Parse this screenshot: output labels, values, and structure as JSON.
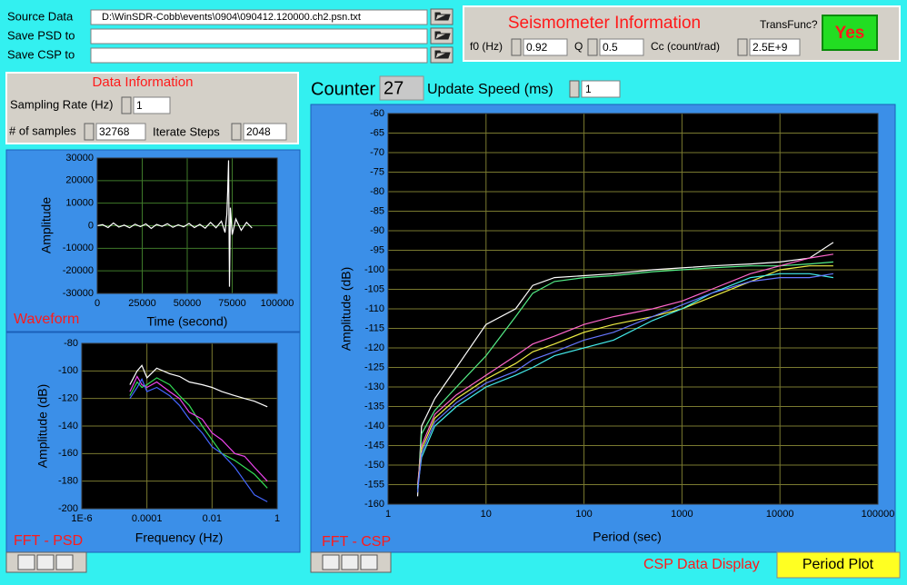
{
  "controls": {
    "source_data": {
      "label": "Source Data",
      "value": "D:\\WinSDR-Cobb\\events\\0904\\090412.120000.ch2.psn.txt"
    },
    "save_psd": {
      "label": "Save PSD to"
    },
    "save_csp": {
      "label": "Save CSP to"
    }
  },
  "seismometer": {
    "title": "Seismometer Information",
    "f0": {
      "label": "f0 (Hz)",
      "value": 0.92
    },
    "q": {
      "label": "Q",
      "value": 0.5
    },
    "cc": {
      "label": "Cc (count/rad)",
      "value": "2.5E+9"
    },
    "transfunc": {
      "label": "TransFunc?",
      "button": "Yes"
    }
  },
  "data_info": {
    "title": "Data Information",
    "sampling_rate": {
      "label": "Sampling Rate (Hz)",
      "value": 1
    },
    "samples": {
      "label": "# of samples",
      "value": 32768
    },
    "iterate_steps": {
      "label": "Iterate Steps",
      "value": 2048
    }
  },
  "counter": {
    "label": "Counter",
    "value": 27
  },
  "update_speed": {
    "label": "Update Speed (ms)",
    "value": 1
  },
  "csp_display": {
    "label": "CSP Data Display",
    "button": "Period Plot"
  },
  "chart_data": [
    {
      "type": "line",
      "title": "Waveform",
      "xlabel": "Time (second)",
      "ylabel": "Amplitude",
      "x": [
        0,
        3000,
        6000,
        9000,
        12000,
        15000,
        18000,
        21000,
        24000,
        27000,
        30000,
        33000,
        36000,
        39000,
        42000,
        45000,
        48000,
        51000,
        54000,
        57000,
        60000,
        63000,
        66000,
        69000,
        71000,
        72000,
        72500,
        73000,
        73500,
        74000,
        75000,
        77000,
        80000,
        83000,
        86000
      ],
      "series": [
        {
          "color": "#ffffff",
          "values": [
            0,
            500,
            -800,
            1200,
            -600,
            300,
            -900,
            700,
            -400,
            800,
            -1200,
            600,
            -300,
            900,
            -700,
            400,
            -500,
            1000,
            -800,
            600,
            -1100,
            1500,
            -900,
            2000,
            -3000,
            5000,
            15000,
            29000,
            -27000,
            8000,
            -4000,
            3000,
            -2000,
            1500,
            -1000
          ]
        }
      ],
      "xlim": [
        0,
        100000
      ],
      "xticks": [
        0,
        25000,
        50000,
        75000,
        100000
      ],
      "ylim": [
        -30000,
        30000
      ],
      "yticks": [
        -30000,
        -20000,
        -10000,
        0,
        10000,
        20000,
        30000
      ],
      "grid": true,
      "grid_color": "#3f7a2a",
      "background": "#000000"
    },
    {
      "type": "line",
      "title": "FFT - PSD",
      "xlabel": "Frequency (Hz)",
      "ylabel": "Amplitude (dB)",
      "xscale": "log",
      "x": [
        3e-05,
        5e-05,
        7e-05,
        0.0001,
        0.0002,
        0.0005,
        0.001,
        0.002,
        0.005,
        0.01,
        0.02,
        0.05,
        0.1,
        0.2,
        0.5
      ],
      "series": [
        {
          "color": "#ffffff",
          "values": [
            -110,
            -100,
            -96,
            -105,
            -98,
            -102,
            -104,
            -108,
            -110,
            -112,
            -115,
            -118,
            -120,
            -122,
            -126
          ]
        },
        {
          "color": "#33dd55",
          "values": [
            -118,
            -108,
            -112,
            -110,
            -105,
            -110,
            -118,
            -125,
            -140,
            -150,
            -160,
            -165,
            -170,
            -175,
            -185
          ]
        },
        {
          "color": "#ee44ee",
          "values": [
            -115,
            -104,
            -110,
            -112,
            -108,
            -115,
            -120,
            -130,
            -135,
            -145,
            -150,
            -160,
            -162,
            -170,
            -180
          ]
        },
        {
          "color": "#4466ff",
          "values": [
            -120,
            -112,
            -106,
            -115,
            -112,
            -118,
            -125,
            -135,
            -145,
            -155,
            -160,
            -170,
            -180,
            -190,
            -195
          ]
        }
      ],
      "xlim": [
        1e-06,
        1
      ],
      "xticks": [
        {
          "value": 1e-06,
          "label": "1E-6"
        },
        0.0001,
        0.01,
        1
      ],
      "ylim": [
        -200,
        -80
      ],
      "yticks": [
        -200,
        -180,
        -160,
        -140,
        -120,
        -100,
        -80
      ],
      "grid": true,
      "grid_color": "#7a7a30",
      "background": "#000000"
    },
    {
      "type": "line",
      "title": "FFT - CSP",
      "xlabel": "Period (sec)",
      "ylabel": "Amplitude (dB)",
      "xscale": "log",
      "x": [
        2,
        2.2,
        3,
        5,
        10,
        20,
        30,
        50,
        100,
        200,
        500,
        1000,
        2000,
        5000,
        10000,
        20000,
        35000
      ],
      "series": [
        {
          "color": "#ffffff",
          "values": [
            -158,
            -140,
            -133,
            -125,
            -114,
            -110,
            -104,
            -102,
            -101.5,
            -101,
            -100,
            -99.5,
            -99,
            -98.5,
            -98,
            -97,
            -93
          ]
        },
        {
          "color": "#55ee88",
          "values": [
            -157,
            -142,
            -136,
            -130,
            -122,
            -112,
            -106,
            -103,
            -102,
            -101.5,
            -100.5,
            -100,
            -99.5,
            -99,
            -99,
            -98.5,
            -98
          ]
        },
        {
          "color": "#ff66cc",
          "values": [
            -155,
            -145,
            -137,
            -132,
            -127,
            -122,
            -119,
            -117,
            -114,
            -112,
            -110,
            -108,
            -105,
            -101,
            -99,
            -97,
            -96
          ]
        },
        {
          "color": "#eeee44",
          "values": [
            -156,
            -146,
            -138,
            -133,
            -128,
            -124,
            -121,
            -119,
            -116,
            -114,
            -112,
            -110,
            -107,
            -103,
            -100,
            -99,
            -99
          ]
        },
        {
          "color": "#44eeee",
          "values": [
            -156,
            -148,
            -140,
            -135,
            -130,
            -127,
            -125,
            -122,
            -120,
            -118,
            -113,
            -110,
            -106,
            -102,
            -101,
            -101,
            -102
          ]
        },
        {
          "color": "#6677ff",
          "values": [
            -157,
            -147,
            -139,
            -134,
            -129,
            -126,
            -123,
            -121,
            -118,
            -116,
            -112,
            -109,
            -106,
            -103,
            -102,
            -102,
            -101
          ]
        }
      ],
      "xlim": [
        1,
        100000
      ],
      "xticks": [
        1,
        10,
        100,
        1000,
        10000,
        100000
      ],
      "ylim": [
        -160,
        -60
      ],
      "yticks": [
        -160,
        -155,
        -150,
        -145,
        -140,
        -135,
        -130,
        -125,
        -120,
        -115,
        -110,
        -105,
        -100,
        -95,
        -90,
        -85,
        -80,
        -75,
        -70,
        -65,
        -60
      ],
      "grid": true,
      "grid_color": "#7a7a30",
      "background": "#000000"
    }
  ]
}
